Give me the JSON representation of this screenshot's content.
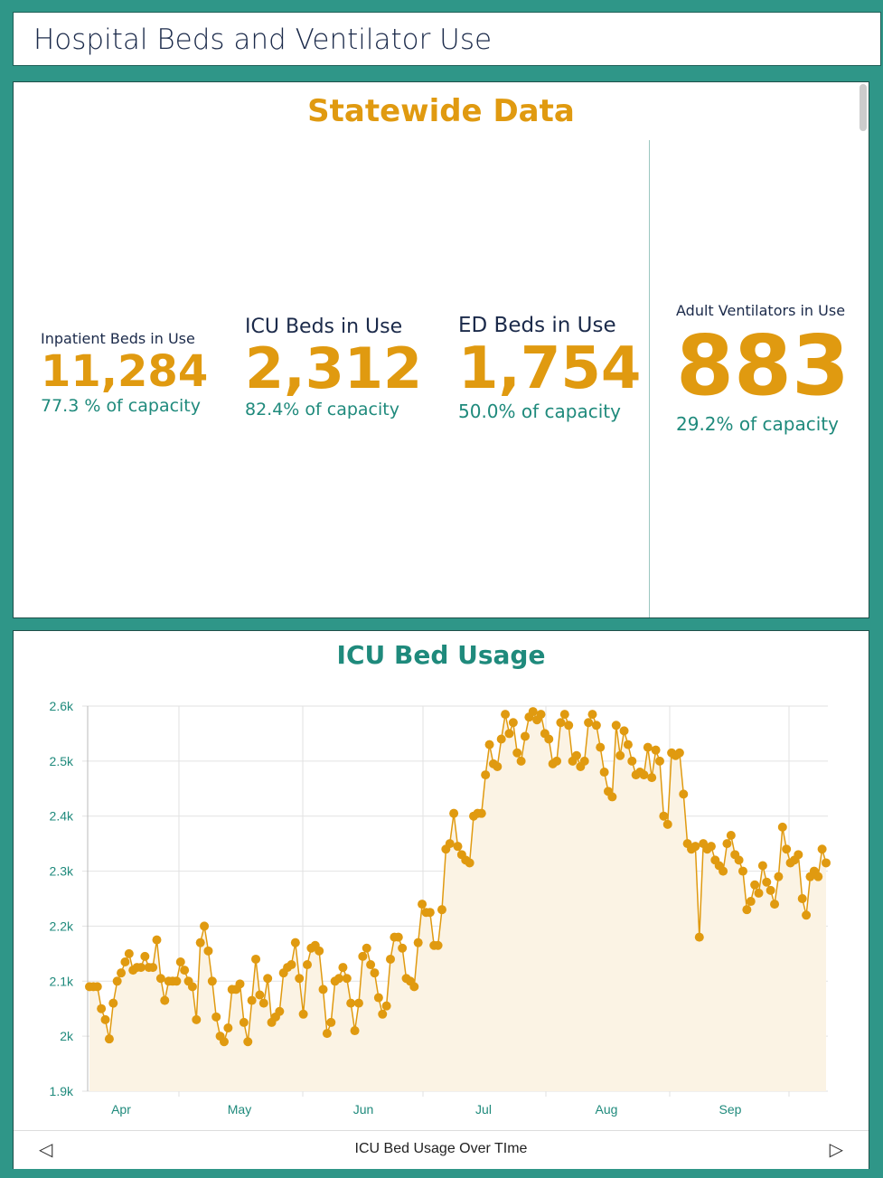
{
  "header": {
    "title": "Hospital Beds and Ventilator Use"
  },
  "statewide": {
    "title": "Statewide Data",
    "inpatient": {
      "label": "Inpatient Beds in Use",
      "value": "11,284",
      "capacity": "77.3 % of capacity"
    },
    "icu": {
      "label": "ICU Beds in Use",
      "value": "2,312",
      "capacity": "82.4% of capacity"
    },
    "ed": {
      "label": "ED Beds in Use",
      "value": "1,754",
      "capacity": "50.0% of capacity"
    },
    "ventilators": {
      "label": "Adult Ventilators in Use",
      "value": "883",
      "capacity": "29.2% of capacity"
    }
  },
  "colors": {
    "accent": "#e09a10",
    "teal": "#1f8a7c",
    "background": "#2f9688",
    "fill": "#fbf3e4"
  },
  "footer": {
    "title": "ICU Bed Usage Over TIme",
    "prev_icon": "triangle-left-icon",
    "next_icon": "triangle-right-icon"
  },
  "chart_data": {
    "type": "line",
    "title": "ICU Bed Usage",
    "area_fill": true,
    "markers": true,
    "grid": true,
    "ylim": [
      1900,
      2600
    ],
    "y_ticks": [
      "1.9k",
      "2k",
      "2.1k",
      "2.2k",
      "2.3k",
      "2.4k",
      "2.5k",
      "2.6k"
    ],
    "x_ticks": [
      "Apr",
      "May",
      "Jun",
      "Jul",
      "Aug",
      "Sep"
    ],
    "values": [
      2090,
      2090,
      2090,
      2050,
      2030,
      1995,
      2060,
      2100,
      2115,
      2135,
      2150,
      2120,
      2125,
      2125,
      2145,
      2125,
      2125,
      2175,
      2105,
      2065,
      2100,
      2100,
      2100,
      2135,
      2120,
      2100,
      2090,
      2030,
      2170,
      2200,
      2155,
      2100,
      2035,
      2000,
      1990,
      2015,
      2085,
      2085,
      2095,
      2025,
      1990,
      2065,
      2140,
      2075,
      2060,
      2105,
      2025,
      2035,
      2045,
      2115,
      2125,
      2130,
      2170,
      2105,
      2040,
      2130,
      2160,
      2165,
      2155,
      2085,
      2005,
      2025,
      2100,
      2105,
      2125,
      2105,
      2060,
      2010,
      2060,
      2145,
      2160,
      2130,
      2115,
      2070,
      2040,
      2055,
      2140,
      2180,
      2180,
      2160,
      2105,
      2100,
      2090,
      2170,
      2240,
      2225,
      2225,
      2165,
      2165,
      2230,
      2340,
      2350,
      2405,
      2345,
      2330,
      2320,
      2315,
      2400,
      2405,
      2405,
      2475,
      2530,
      2495,
      2490,
      2540,
      2585,
      2550,
      2570,
      2515,
      2500,
      2545,
      2580,
      2590,
      2575,
      2585,
      2550,
      2540,
      2495,
      2500,
      2570,
      2585,
      2565,
      2500,
      2510,
      2490,
      2500,
      2570,
      2585,
      2565,
      2525,
      2480,
      2445,
      2435,
      2565,
      2510,
      2555,
      2530,
      2500,
      2475,
      2480,
      2475,
      2525,
      2470,
      2520,
      2500,
      2400,
      2385,
      2515,
      2510,
      2515,
      2440,
      2350,
      2340,
      2345,
      2180,
      2350,
      2340,
      2345,
      2320,
      2310,
      2300,
      2350,
      2365,
      2330,
      2320,
      2300,
      2230,
      2245,
      2275,
      2260,
      2310,
      2280,
      2265,
      2240,
      2290,
      2380,
      2340,
      2315,
      2320,
      2330,
      2250,
      2220,
      2290,
      2300,
      2290,
      2340,
      2315
    ]
  }
}
